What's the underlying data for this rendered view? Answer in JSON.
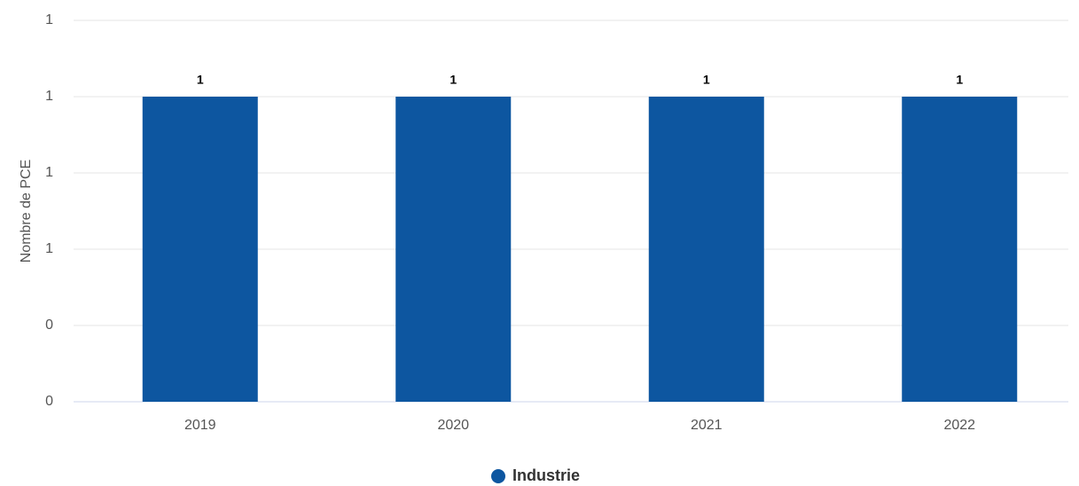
{
  "chart_data": {
    "type": "bar",
    "y_label": "Nombre de PCE",
    "categories": [
      "2019",
      "2020",
      "2021",
      "2022"
    ],
    "series": [
      {
        "name": "Industrie",
        "color": "#0d56a0",
        "values": [
          1,
          1,
          1,
          1
        ]
      }
    ],
    "ylim": [
      0,
      1.25
    ],
    "yticks": [
      {
        "value": 0,
        "label": "0"
      },
      {
        "value": 0.25,
        "label": "0"
      },
      {
        "value": 0.5,
        "label": "1"
      },
      {
        "value": 0.75,
        "label": "1"
      },
      {
        "value": 1,
        "label": "1"
      },
      {
        "value": 1.25,
        "label": "1"
      }
    ],
    "grid": true
  }
}
